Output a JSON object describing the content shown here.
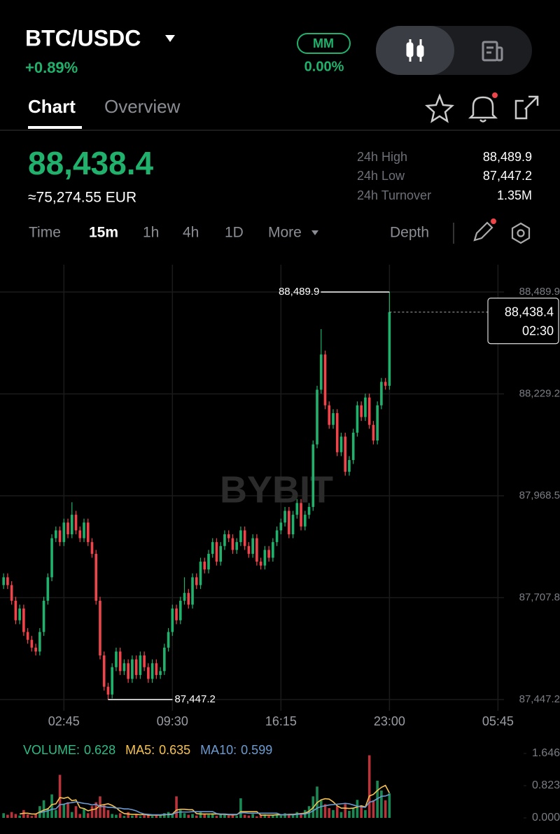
{
  "header": {
    "pair": "BTC/USDC",
    "change": "+0.89%",
    "mm_label": "MM",
    "mm_value": "0.00%"
  },
  "tabs": [
    "Chart",
    "Overview"
  ],
  "price": {
    "last": "88,438.4",
    "fiat": "≈75,274.55 EUR"
  },
  "stats": [
    {
      "label": "24h High",
      "value": "88,489.9"
    },
    {
      "label": "24h Low",
      "value": "87,447.2"
    },
    {
      "label": "24h Turnover",
      "value": "1.35M"
    }
  ],
  "intervals": [
    "Time",
    "15m",
    "1h",
    "4h",
    "1D",
    "More"
  ],
  "depth": "Depth",
  "watermark": "BYBIT",
  "chart_data": [
    {
      "type": "candlestick",
      "up_color": "#20b26c",
      "down_color": "#ef454a",
      "grid": true,
      "countdown": "02:30",
      "xlim": [
        -0.9,
        124.5
      ],
      "xticks": [
        {
          "value": 15,
          "label": "02:45"
        },
        {
          "value": 42,
          "label": "09:30"
        },
        {
          "value": 69,
          "label": "16:15"
        },
        {
          "value": 96,
          "label": "23:00"
        },
        {
          "value": 123,
          "label": "05:45"
        }
      ],
      "ylim": [
        87418.5,
        88559.8
      ],
      "yticks": [
        {
          "value": 88489.9,
          "label": "88,489.9"
        },
        {
          "value": 88229.2,
          "label": "88,229.2"
        },
        {
          "value": 87968.5,
          "label": "87,968.5"
        },
        {
          "value": 87707.8,
          "label": "87,707.8"
        },
        {
          "value": 87447.2,
          "label": "87,447.2"
        }
      ],
      "ohlc": [
        [
          87740,
          87770,
          87730,
          87760
        ],
        [
          87760,
          87770,
          87730,
          87740
        ],
        [
          87740,
          87750,
          87690,
          87700
        ],
        [
          87700,
          87710,
          87640,
          87650
        ],
        [
          87650,
          87690,
          87640,
          87680
        ],
        [
          87680,
          87690,
          87610,
          87620
        ],
        [
          87620,
          87630,
          87590,
          87600
        ],
        [
          87600,
          87610,
          87570,
          87580
        ],
        [
          87580,
          87590,
          87560,
          87570
        ],
        [
          87570,
          87630,
          87560,
          87620
        ],
        [
          87620,
          87710,
          87610,
          87700
        ],
        [
          87700,
          87770,
          87690,
          87760
        ],
        [
          87760,
          87870,
          87750,
          87860
        ],
        [
          87860,
          87890,
          87850,
          87880
        ],
        [
          87880,
          87890,
          87840,
          87850
        ],
        [
          87850,
          87910,
          87840,
          87900
        ],
        [
          87900,
          87910,
          87860,
          87870
        ],
        [
          87870,
          87952,
          87860,
          87920
        ],
        [
          87920,
          87930,
          87870,
          87880
        ],
        [
          87880,
          87890,
          87850,
          87860
        ],
        [
          87860,
          87910,
          87850,
          87900
        ],
        [
          87900,
          87910,
          87840,
          87850
        ],
        [
          87850,
          87860,
          87810,
          87820
        ],
        [
          87820,
          87830,
          87690,
          87700
        ],
        [
          87700,
          87710,
          87550,
          87560
        ],
        [
          87560,
          87570,
          87470,
          87480
        ],
        [
          87480,
          87490,
          87447.2,
          87460
        ],
        [
          87460,
          87540,
          87450,
          87530
        ],
        [
          87530,
          87580,
          87520,
          87570
        ],
        [
          87570,
          87580,
          87510,
          87520
        ],
        [
          87520,
          87550,
          87510,
          87540
        ],
        [
          87540,
          87550,
          87490,
          87500
        ],
        [
          87500,
          87560,
          87490,
          87550
        ],
        [
          87550,
          87560,
          87500,
          87510
        ],
        [
          87510,
          87570,
          87500,
          87560
        ],
        [
          87560,
          87570,
          87520,
          87530
        ],
        [
          87530,
          87540,
          87490,
          87500
        ],
        [
          87500,
          87550,
          87490,
          87540
        ],
        [
          87540,
          87550,
          87500,
          87510
        ],
        [
          87510,
          87530,
          87500,
          87520
        ],
        [
          87520,
          87590,
          87510,
          87580
        ],
        [
          87580,
          87630,
          87570,
          87620
        ],
        [
          87620,
          87690,
          87610,
          87680
        ],
        [
          87680,
          87690,
          87640,
          87650
        ],
        [
          87650,
          87710,
          87640,
          87700
        ],
        [
          87700,
          87760,
          87690,
          87720
        ],
        [
          87720,
          87730,
          87680,
          87690
        ],
        [
          87690,
          87770,
          87680,
          87760
        ],
        [
          87760,
          87770,
          87730,
          87740
        ],
        [
          87740,
          87810,
          87730,
          87800
        ],
        [
          87800,
          87810,
          87770,
          87780
        ],
        [
          87780,
          87830,
          87770,
          87820
        ],
        [
          87820,
          87860,
          87810,
          87850
        ],
        [
          87850,
          87860,
          87790,
          87800
        ],
        [
          87800,
          87850,
          87790,
          87840
        ],
        [
          87840,
          87880,
          87830,
          87870
        ],
        [
          87870,
          87880,
          87850,
          87860
        ],
        [
          87860,
          87870,
          87820,
          87830
        ],
        [
          87830,
          87860,
          87820,
          87850
        ],
        [
          87850,
          87890,
          87840,
          87880
        ],
        [
          87880,
          87890,
          87830,
          87840
        ],
        [
          87840,
          87850,
          87810,
          87820
        ],
        [
          87820,
          87870,
          87810,
          87860
        ],
        [
          87860,
          87870,
          87790,
          87800
        ],
        [
          87800,
          87810,
          87780,
          87790
        ],
        [
          87790,
          87840,
          87780,
          87830
        ],
        [
          87830,
          87840,
          87800,
          87810
        ],
        [
          87810,
          87860,
          87800,
          87850
        ],
        [
          87850,
          87890,
          87840,
          87880
        ],
        [
          87880,
          87910,
          87870,
          87900
        ],
        [
          87900,
          87940,
          87890,
          87930
        ],
        [
          87930,
          87940,
          87860,
          87870
        ],
        [
          87870,
          87930,
          87860,
          87920
        ],
        [
          87920,
          87960,
          87910,
          87950
        ],
        [
          87950,
          87960,
          87880,
          87890
        ],
        [
          87890,
          87930,
          87880,
          87920
        ],
        [
          87920,
          87950,
          87910,
          87940
        ],
        [
          87940,
          88110,
          87930,
          88100
        ],
        [
          88100,
          88250,
          88090,
          88240
        ],
        [
          88240,
          88395,
          88230,
          88330
        ],
        [
          88330,
          88340,
          88190,
          88200
        ],
        [
          88200,
          88210,
          88140,
          88150
        ],
        [
          88150,
          88190,
          88140,
          88180
        ],
        [
          88180,
          88190,
          88070,
          88080
        ],
        [
          88080,
          88130,
          88070,
          88120
        ],
        [
          88120,
          88130,
          88020,
          88030
        ],
        [
          88030,
          88070,
          88020,
          88060
        ],
        [
          88060,
          88140,
          88050,
          88130
        ],
        [
          88130,
          88210,
          88120,
          88200
        ],
        [
          88200,
          88210,
          88160,
          88170
        ],
        [
          88170,
          88230,
          88160,
          88220
        ],
        [
          88220,
          88230,
          88140,
          88150
        ],
        [
          88150,
          88160,
          88100,
          88110
        ],
        [
          88110,
          88210,
          88100,
          88200
        ],
        [
          88200,
          88270,
          88190,
          88260
        ],
        [
          88260,
          88270,
          88240,
          88250
        ],
        [
          88250,
          88489.9,
          88240,
          88438.4
        ]
      ]
    },
    {
      "type": "bar",
      "up_color": "#1a8a55",
      "down_color": "#b8343a",
      "xlim": [
        -0.9,
        124.5
      ],
      "ylim": [
        0,
        1.646
      ],
      "yticks": [
        1.646,
        0.823,
        {
          "value": 0,
          "label": "0.000"
        }
      ],
      "series": [
        {
          "name": "VOLUME:",
          "color": "#2ebd85",
          "values": [
            0.12,
            0.08,
            0.15,
            0.1,
            0.06,
            0.2,
            0.09,
            0.05,
            0.11,
            0.3,
            0.45,
            0.25,
            0.6,
            0.2,
            1.1,
            0.35,
            0.4,
            0.15,
            0.3,
            0.1,
            0.25,
            0.12,
            0.3,
            0.4,
            0.55,
            0.35,
            0.2,
            0.1,
            0.08,
            0.12,
            0.05,
            0.15,
            0.06,
            0.09,
            0.04,
            0.1,
            0.07,
            0.05,
            0.08,
            0.06,
            0.12,
            0.15,
            0.1,
            0.55,
            0.2,
            0.12,
            0.08,
            0.1,
            0.06,
            0.15,
            0.1,
            0.08,
            0.12,
            0.05,
            0.1,
            0.08,
            0.06,
            0.09,
            0.05,
            0.5,
            0.08,
            0.06,
            0.1,
            0.04,
            0.07,
            0.09,
            0.05,
            0.08,
            0.1,
            0.06,
            0.12,
            0.08,
            0.09,
            0.15,
            0.1,
            0.2,
            0.3,
            0.55,
            0.8,
            0.45,
            0.35,
            0.25,
            0.2,
            0.3,
            0.15,
            0.35,
            0.18,
            0.25,
            0.46,
            0.3,
            0.2,
            1.6,
            0.45,
            0.95,
            0.7,
            0.45,
            0.628
          ]
        },
        {
          "name": "MA5:",
          "color": "#f7c34c",
          "type": "line",
          "values": [
            null,
            null,
            null,
            null,
            0.1,
            0.12,
            0.12,
            0.1,
            0.1,
            0.15,
            0.2,
            0.23,
            0.34,
            0.36,
            0.52,
            0.5,
            0.53,
            0.44,
            0.46,
            0.26,
            0.24,
            0.18,
            0.21,
            0.23,
            0.32,
            0.34,
            0.36,
            0.32,
            0.26,
            0.17,
            0.11,
            0.1,
            0.09,
            0.09,
            0.08,
            0.09,
            0.07,
            0.07,
            0.07,
            0.07,
            0.08,
            0.09,
            0.1,
            0.2,
            0.22,
            0.22,
            0.21,
            0.21,
            0.11,
            0.1,
            0.1,
            0.1,
            0.1,
            0.1,
            0.09,
            0.09,
            0.08,
            0.08,
            0.08,
            0.16,
            0.16,
            0.16,
            0.16,
            0.16,
            0.07,
            0.07,
            0.07,
            0.07,
            0.08,
            0.08,
            0.08,
            0.09,
            0.09,
            0.1,
            0.11,
            0.12,
            0.17,
            0.26,
            0.39,
            0.46,
            0.49,
            0.48,
            0.41,
            0.31,
            0.25,
            0.25,
            0.24,
            0.25,
            0.28,
            0.31,
            0.28,
            0.56,
            0.6,
            0.7,
            0.78,
            0.83,
            0.635
          ]
        },
        {
          "name": "MA10:",
          "color": "#6c9bd2",
          "type": "line",
          "values": [
            null,
            null,
            null,
            null,
            null,
            null,
            null,
            null,
            null,
            0.13,
            0.16,
            0.18,
            0.22,
            0.23,
            0.34,
            0.35,
            0.38,
            0.39,
            0.41,
            0.39,
            0.37,
            0.36,
            0.33,
            0.35,
            0.29,
            0.29,
            0.27,
            0.27,
            0.25,
            0.25,
            0.23,
            0.23,
            0.21,
            0.18,
            0.13,
            0.1,
            0.09,
            0.08,
            0.08,
            0.08,
            0.09,
            0.08,
            0.09,
            0.14,
            0.15,
            0.15,
            0.15,
            0.16,
            0.16,
            0.16,
            0.16,
            0.16,
            0.16,
            0.11,
            0.1,
            0.1,
            0.09,
            0.09,
            0.09,
            0.13,
            0.13,
            0.12,
            0.12,
            0.12,
            0.12,
            0.12,
            0.12,
            0.12,
            0.12,
            0.08,
            0.08,
            0.08,
            0.08,
            0.09,
            0.1,
            0.1,
            0.13,
            0.18,
            0.25,
            0.29,
            0.31,
            0.33,
            0.34,
            0.35,
            0.36,
            0.37,
            0.36,
            0.33,
            0.3,
            0.28,
            0.27,
            0.4,
            0.43,
            0.49,
            0.55,
            0.56,
            0.599
          ]
        }
      ]
    }
  ]
}
